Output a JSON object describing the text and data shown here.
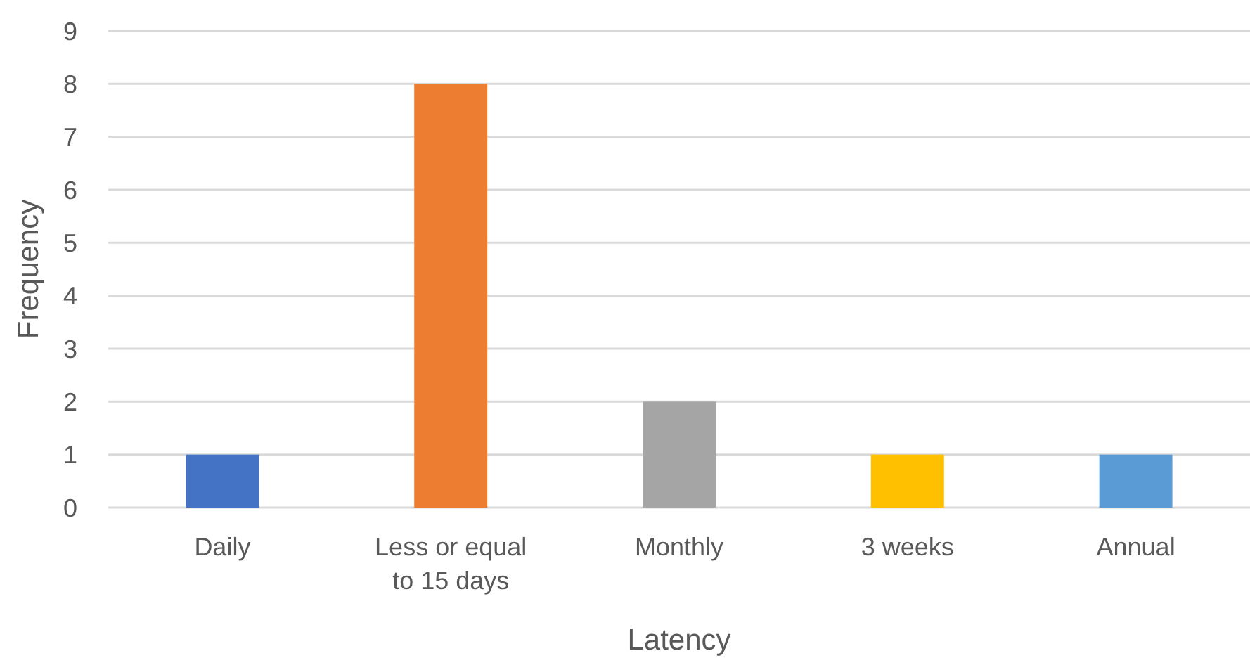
{
  "chart_data": {
    "type": "bar",
    "xlabel": "Latency",
    "ylabel": "Frequency",
    "categories": [
      "Daily",
      "Less or equal to 15 days",
      "Monthly",
      "3 weeks",
      "Annual"
    ],
    "values": [
      1,
      8,
      2,
      1,
      1
    ],
    "colors": [
      "#4472c4",
      "#ed7d31",
      "#a5a5a5",
      "#ffc000",
      "#5b9bd5"
    ],
    "ylim": [
      0,
      9
    ],
    "yticks": [
      0,
      1,
      2,
      3,
      4,
      5,
      6,
      7,
      8,
      9
    ],
    "grid": "y"
  }
}
